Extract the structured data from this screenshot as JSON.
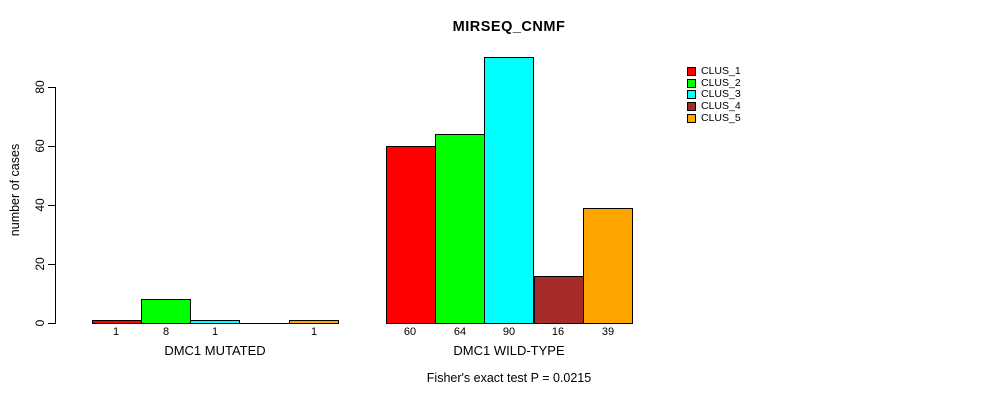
{
  "chart_data": {
    "type": "bar",
    "title": "MIRSEQ_CNMF",
    "ylabel": "number of cases",
    "xlabel": "",
    "ylim": [
      0,
      90
    ],
    "yticks": [
      0,
      20,
      40,
      60,
      80
    ],
    "grid": false,
    "legend_position": "top-right",
    "categories": [
      "DMC1 MUTATED",
      "DMC1 WILD-TYPE"
    ],
    "series": [
      {
        "name": "CLUS_1",
        "color": "#ff0000",
        "values": [
          1,
          60
        ]
      },
      {
        "name": "CLUS_2",
        "color": "#00ff00",
        "values": [
          8,
          64
        ]
      },
      {
        "name": "CLUS_3",
        "color": "#00ffff",
        "values": [
          1,
          90
        ]
      },
      {
        "name": "CLUS_4",
        "color": "#a52a2a",
        "values": [
          0,
          16
        ]
      },
      {
        "name": "CLUS_5",
        "color": "#ffa500",
        "values": [
          1,
          39
        ]
      }
    ],
    "bar_value_labels": [
      [
        "1",
        "8",
        "1",
        "",
        "1"
      ],
      [
        "60",
        "64",
        "90",
        "16",
        "39"
      ]
    ],
    "annotation": "Fisher's exact test P = 0.0215"
  }
}
